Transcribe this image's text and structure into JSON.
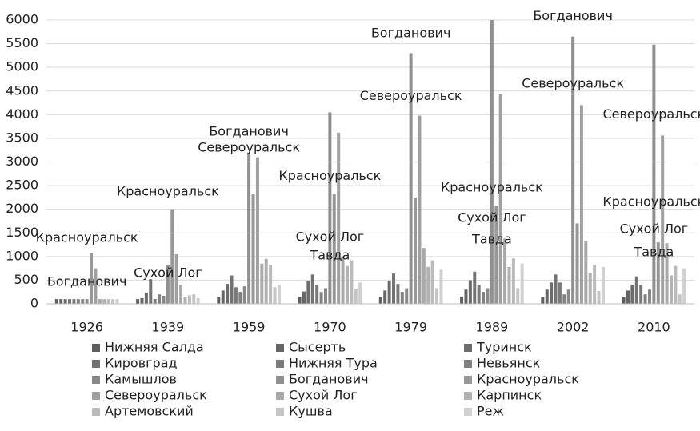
{
  "chart_data": {
    "type": "bar",
    "categories": [
      "1926",
      "1939",
      "1959",
      "1970",
      "1979",
      "1989",
      "2002",
      "2010"
    ],
    "ylim": [
      0,
      6000
    ],
    "yticks": [
      0,
      500,
      1000,
      1500,
      2000,
      2500,
      3000,
      3500,
      4000,
      4500,
      5000,
      5500,
      6000
    ],
    "grid": true,
    "legend": "bottom",
    "series": [
      {
        "name": "Нижняя Салда",
        "color": "#5f5f5f",
        "values": [
          100,
          100,
          150,
          150,
          150,
          150,
          150,
          150
        ]
      },
      {
        "name": "Сысерть",
        "color": "#656565",
        "values": [
          100,
          120,
          280,
          260,
          280,
          300,
          300,
          280
        ]
      },
      {
        "name": "Туринск",
        "color": "#6c6c6c",
        "values": [
          100,
          230,
          420,
          480,
          480,
          500,
          450,
          400
        ]
      },
      {
        "name": "Кировград",
        "color": "#737373",
        "values": [
          100,
          520,
          600,
          620,
          640,
          680,
          620,
          580
        ]
      },
      {
        "name": "Нижняя Тура",
        "color": "#7a7a7a",
        "values": [
          100,
          100,
          350,
          400,
          420,
          400,
          450,
          400
        ]
      },
      {
        "name": "Невьянск",
        "color": "#818181",
        "values": [
          100,
          200,
          250,
          250,
          250,
          250,
          200,
          200
        ]
      },
      {
        "name": "Камышлов",
        "color": "#888888",
        "values": [
          100,
          170,
          370,
          330,
          330,
          330,
          300,
          300
        ]
      },
      {
        "name": "Богданович",
        "color": "#909090",
        "values": [
          100,
          820,
          3200,
          4050,
          5300,
          6000,
          5650,
          5480
        ]
      },
      {
        "name": "Красноуральск",
        "color": "#989898",
        "values": [
          1080,
          2000,
          2330,
          2330,
          2250,
          2070,
          1700,
          1300
        ]
      },
      {
        "name": "Североуральск",
        "color": "#a0a0a0",
        "values": [
          750,
          1050,
          3100,
          3620,
          3980,
          4430,
          4200,
          3560
        ]
      },
      {
        "name": "Сухой Лог",
        "color": "#a9a9a9",
        "values": [
          100,
          400,
          850,
          1000,
          1180,
          1380,
          1330,
          1280
        ]
      },
      {
        "name": "Карпинск",
        "color": "#b2b2b2",
        "values": [
          100,
          150,
          950,
          800,
          780,
          780,
          650,
          600
        ]
      },
      {
        "name": "Артемовский",
        "color": "#bbbbbb",
        "values": [
          100,
          180,
          820,
          920,
          920,
          960,
          820,
          800
        ]
      },
      {
        "name": "Кушва",
        "color": "#c5c5c5",
        "values": [
          100,
          200,
          350,
          320,
          330,
          330,
          270,
          200
        ]
      },
      {
        "name": "Реж",
        "color": "#d0d0d0",
        "values": [
          100,
          120,
          400,
          450,
          720,
          850,
          780,
          750
        ]
      }
    ],
    "annotations": [
      {
        "text": "Красноуральск",
        "category": 0,
        "value": 1390
      },
      {
        "text": "Богданович",
        "category": 0,
        "value": 460
      },
      {
        "text": "Красноуральск",
        "category": 1,
        "value": 2370
      },
      {
        "text": "Сухой Лог",
        "category": 1,
        "value": 640
      },
      {
        "text": "Богданович",
        "category": 2,
        "value": 3630
      },
      {
        "text": "Североуральск",
        "category": 2,
        "value": 3300
      },
      {
        "text": "Красноуральск",
        "category": 3,
        "value": 2700
      },
      {
        "text": "Сухой Лог",
        "category": 3,
        "value": 1400
      },
      {
        "text": "Тавда",
        "category": 3,
        "value": 1010
      },
      {
        "text": "Богданович",
        "category": 4,
        "value": 5710
      },
      {
        "text": "Североуральск",
        "category": 4,
        "value": 4390
      },
      {
        "text": "Красноуральск",
        "category": 5,
        "value": 2450
      },
      {
        "text": "Сухой Лог",
        "category": 5,
        "value": 1810
      },
      {
        "text": "Тавда",
        "category": 5,
        "value": 1350
      },
      {
        "text": "Богданович",
        "category": 6,
        "value": 6080
      },
      {
        "text": "Североуральск",
        "category": 6,
        "value": 4650
      },
      {
        "text": "Североуральск",
        "category": 7,
        "value": 4000
      },
      {
        "text": "Красноуральск",
        "category": 7,
        "value": 2150
      },
      {
        "text": "Сухой Лог",
        "category": 7,
        "value": 1570
      },
      {
        "text": "Тавда",
        "category": 7,
        "value": 1080
      }
    ]
  }
}
